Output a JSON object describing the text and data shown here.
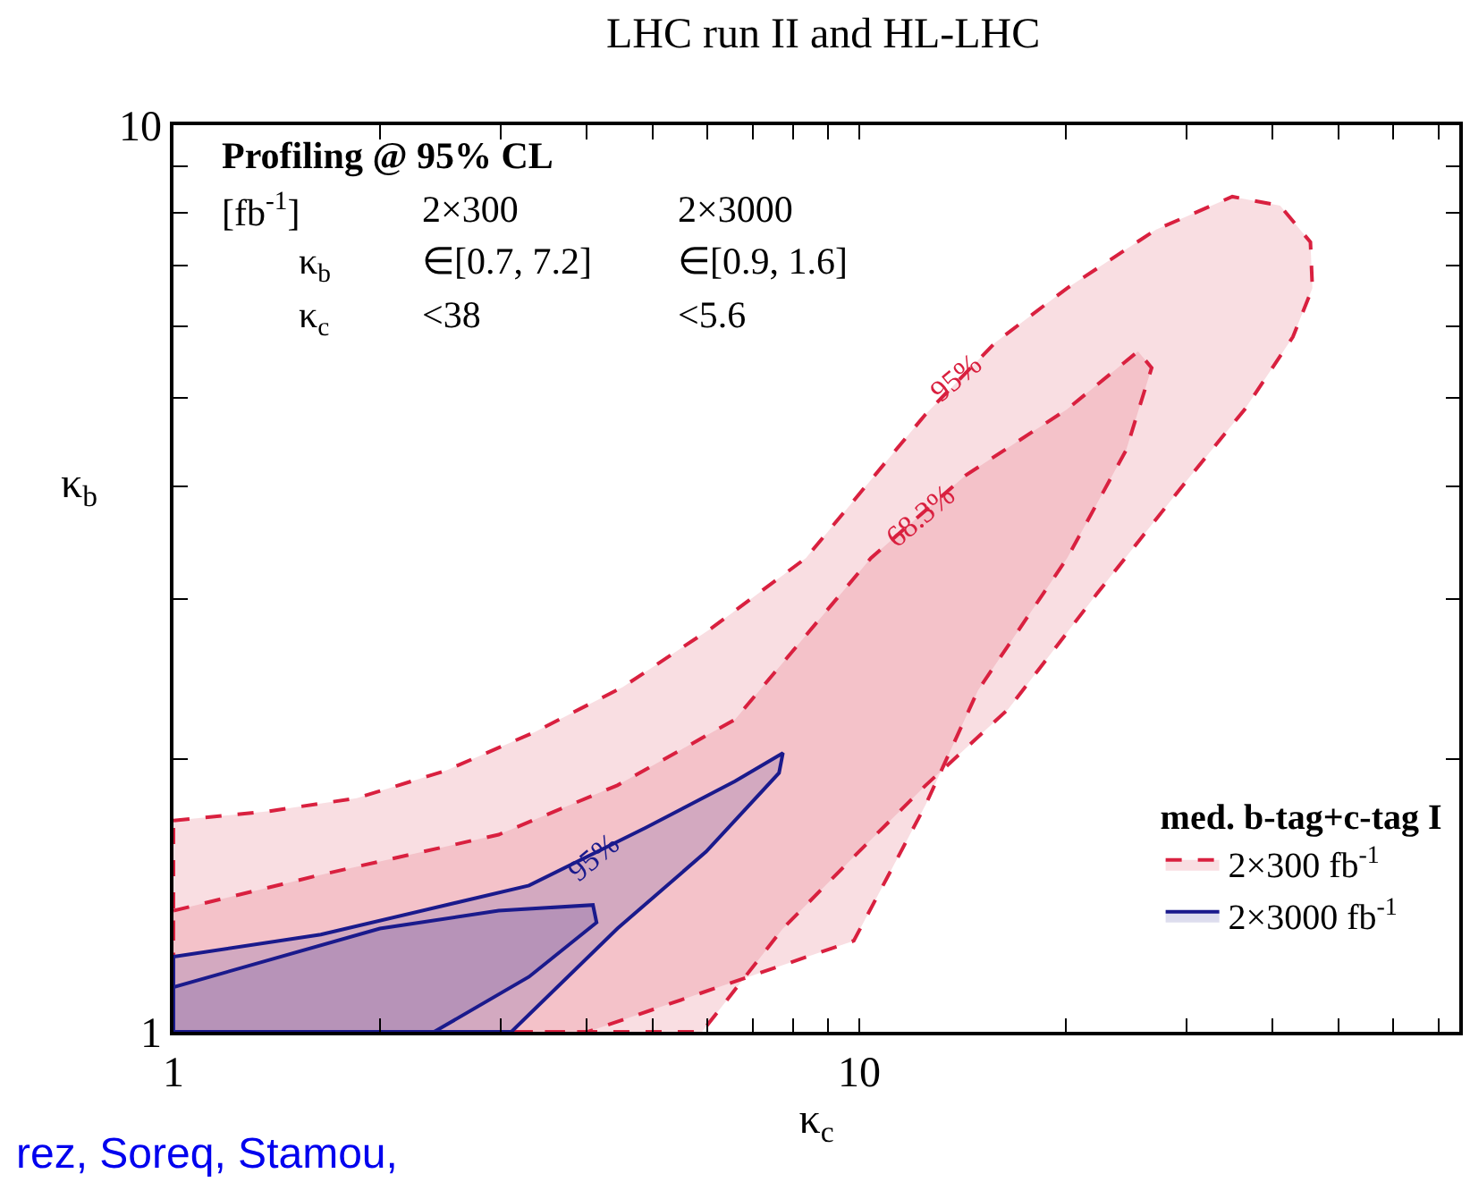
{
  "chart_data": {
    "type": "area",
    "title": "LHC run II and HL-LHC",
    "xlabel": "κ$_{c}$",
    "ylabel": "κ$_{b}$",
    "legend_title": "med. b-tag+c-tag I",
    "log": "xy",
    "xlim": [
      1,
      75
    ],
    "ylim": [
      1,
      10
    ],
    "legend": "bottom right",
    "xticks": [
      1,
      {
        "value": 2,
        "label": null
      },
      {
        "value": 3,
        "label": null
      },
      {
        "value": 4,
        "label": null
      },
      {
        "value": 5,
        "label": null
      },
      {
        "value": 6,
        "label": null
      },
      {
        "value": 7,
        "label": null
      },
      {
        "value": 8,
        "label": null
      },
      {
        "value": 9,
        "label": null
      },
      10,
      {
        "value": 20,
        "label": null
      },
      {
        "value": 30,
        "label": null
      },
      {
        "value": 40,
        "label": null
      },
      {
        "value": 50,
        "label": null
      },
      {
        "value": 60,
        "label": null
      },
      {
        "value": 70,
        "label": null
      }
    ],
    "yticks": [
      1,
      {
        "value": 2,
        "label": null
      },
      {
        "value": 3,
        "label": null
      },
      {
        "value": 4,
        "label": null
      },
      {
        "value": 5,
        "label": null
      },
      {
        "value": 6,
        "label": null
      },
      {
        "value": 7,
        "label": null
      },
      {
        "value": 8,
        "label": null
      },
      {
        "value": 9,
        "label": null
      },
      10
    ],
    "series": [
      {
        "name": "2×300 fb$^{-1}$",
        "color": "#d9203f",
        "line_style": "dashed",
        "x": [
          1,
          1.37,
          1.85,
          2.49,
          3.36,
          4.52,
          6.1,
          8.36,
          12.5,
          15.8,
          20.1,
          27.1,
          35.0,
          41.1,
          45.5,
          45.8,
          42.9,
          36.5,
          30.0,
          22.2,
          16.5,
          12.5,
          9.82,
          7.74,
          5.9,
          1,
          1
        ],
        "values": [
          1.71,
          1.75,
          1.81,
          1.94,
          2.14,
          2.4,
          2.79,
          3.33,
          4.8,
          5.76,
          6.61,
          7.67,
          8.34,
          8.15,
          7.43,
          6.61,
          5.84,
          4.86,
          4.05,
          3.04,
          2.27,
          1.87,
          1.56,
          1.3,
          1,
          1,
          1.71
        ]
      },
      {
        "color": "#d9203f",
        "line_style": "dashed",
        "x": [
          1,
          1.64,
          2.98,
          4.44,
          6.59,
          10.4,
          14.3,
          20.1,
          25.5,
          26.7,
          24.5,
          20.1,
          14.9,
          12.5,
          9.82,
          4.02,
          1,
          1
        ],
        "values": [
          1.36,
          1.49,
          1.65,
          1.87,
          2.21,
          3.33,
          4.11,
          4.86,
          5.63,
          5.4,
          4.38,
          3.33,
          2.38,
          1.78,
          1.26,
          1,
          1,
          1.36
        ]
      },
      {
        "name": "2×3000 fb$^{-1}$",
        "color": "#1a1a8c",
        "line_style": "solid",
        "x": [
          1,
          1.64,
          3.3,
          4.89,
          6.59,
          7.74,
          7.64,
          5.98,
          4.44,
          3.11,
          1,
          1
        ],
        "values": [
          1.21,
          1.28,
          1.45,
          1.68,
          1.89,
          2.03,
          1.93,
          1.58,
          1.3,
          1,
          1,
          1.21
        ]
      },
      {
        "color": "#1a1a8c",
        "line_style": "solid",
        "x": [
          1,
          2.0,
          2.98,
          4.09,
          4.14,
          3.3,
          2.4,
          1,
          1
        ],
        "values": [
          1.12,
          1.3,
          1.36,
          1.38,
          1.32,
          1.15,
          1,
          1,
          1.12
        ]
      }
    ],
    "annotations": [
      {
        "text": "95%",
        "x": 13.8,
        "y": 5.26
      },
      {
        "text": "68.3%",
        "x": 12.3,
        "y": 3.7
      },
      {
        "text": "95%",
        "x": 4.09,
        "y": 1.56
      },
      "Profiling @ 95% CL",
      "[fb$^{-1}$]",
      "2×300",
      "2×3000",
      "κ$_{b}$",
      "∈[0.7, 7.2]",
      "∈[0.9, 1.6]",
      "κ$_{c}$",
      "<38",
      "<5.6",
      "rez, Soreq, Stamou,"
    ]
  }
}
